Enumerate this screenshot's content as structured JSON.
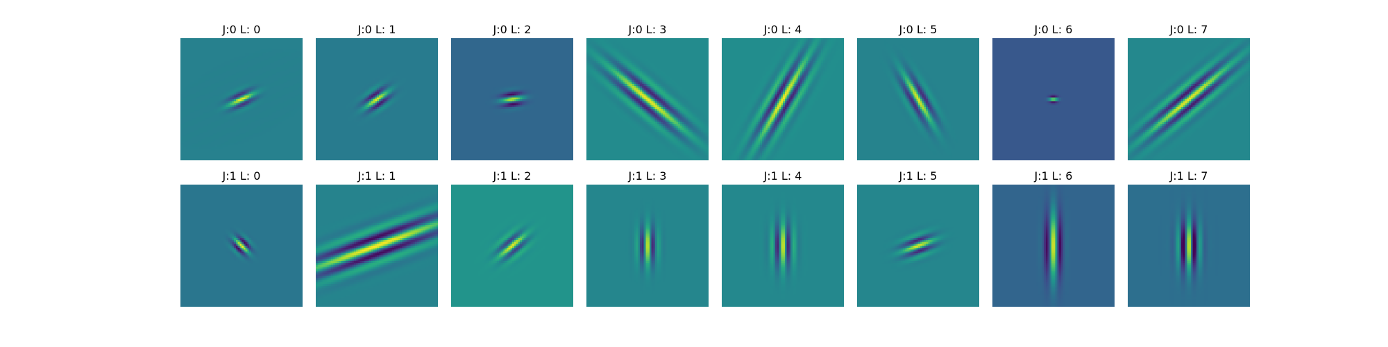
{
  "colors": {
    "low": "#440154",
    "mid": "#21918c",
    "high": "#fde725"
  },
  "chart_data": {
    "type": "heatmap",
    "title": "",
    "colormap": "viridis",
    "rows": 2,
    "cols": 8,
    "panels": [
      {
        "title": "J:0 L: 0",
        "J": 0,
        "L": 0,
        "bg": 0.44,
        "angle_deg": -25,
        "sigma_major": 5,
        "sigma_minor": 2.5,
        "wavelength": 6,
        "amp": 0.55
      },
      {
        "title": "J:0 L: 1",
        "J": 0,
        "L": 1,
        "bg": 0.42,
        "angle_deg": -35,
        "sigma_major": 5,
        "sigma_minor": 3,
        "wavelength": 6,
        "amp": 0.55
      },
      {
        "title": "J:0 L: 2",
        "J": 0,
        "L": 2,
        "bg": 0.34,
        "angle_deg": -8,
        "sigma_major": 4,
        "sigma_minor": 2.5,
        "wavelength": 6,
        "amp": 0.6
      },
      {
        "title": "J:0 L: 3",
        "J": 0,
        "L": 3,
        "bg": 0.48,
        "angle_deg": 40,
        "sigma_major": 17,
        "sigma_minor": 5,
        "wavelength": 8,
        "amp": 0.5
      },
      {
        "title": "J:0 L: 4",
        "J": 0,
        "L": 4,
        "bg": 0.49,
        "angle_deg": -60,
        "sigma_major": 17,
        "sigma_minor": 5,
        "wavelength": 7,
        "amp": 0.5
      },
      {
        "title": "J:0 L: 5",
        "J": 0,
        "L": 5,
        "bg": 0.45,
        "angle_deg": 60,
        "sigma_major": 10,
        "sigma_minor": 3.5,
        "wavelength": 7,
        "amp": 0.5
      },
      {
        "title": "J:0 L: 6",
        "J": 0,
        "L": 6,
        "bg": 0.28,
        "angle_deg": 0,
        "sigma_major": 1.6,
        "sigma_minor": 1.2,
        "wavelength": 4,
        "amp": 0.7
      },
      {
        "title": "J:0 L: 7",
        "J": 0,
        "L": 7,
        "bg": 0.47,
        "angle_deg": -40,
        "sigma_major": 19,
        "sigma_minor": 5,
        "wavelength": 7,
        "amp": 0.5
      },
      {
        "title": "J:1 L: 0",
        "J": 1,
        "L": 0,
        "bg": 0.4,
        "angle_deg": 45,
        "sigma_major": 3.5,
        "sigma_minor": 2.5,
        "wavelength": 5,
        "amp": 0.6
      },
      {
        "title": "J:1 L: 1",
        "J": 1,
        "L": 1,
        "bg": 0.45,
        "angle_deg": -20,
        "sigma_major": 28,
        "sigma_minor": 6,
        "wavelength": 9,
        "amp": 0.55
      },
      {
        "title": "J:1 L: 2",
        "J": 1,
        "L": 2,
        "bg": 0.52,
        "angle_deg": -40,
        "sigma_major": 6,
        "sigma_minor": 3.5,
        "wavelength": 6,
        "amp": 0.45
      },
      {
        "title": "J:1 L: 3",
        "J": 1,
        "L": 3,
        "bg": 0.46,
        "angle_deg": 90,
        "sigma_major": 7,
        "sigma_minor": 3.5,
        "wavelength": 6,
        "amp": 0.5
      },
      {
        "title": "J:1 L: 4",
        "J": 1,
        "L": 4,
        "bg": 0.47,
        "angle_deg": 90,
        "sigma_major": 8,
        "sigma_minor": 4,
        "wavelength": 6,
        "amp": 0.5
      },
      {
        "title": "J:1 L: 5",
        "J": 1,
        "L": 5,
        "bg": 0.46,
        "angle_deg": -20,
        "sigma_major": 6,
        "sigma_minor": 3.5,
        "wavelength": 6,
        "amp": 0.5
      },
      {
        "title": "J:1 L: 6",
        "J": 1,
        "L": 6,
        "bg": 0.33,
        "angle_deg": 90,
        "sigma_major": 12,
        "sigma_minor": 3,
        "wavelength": 8,
        "amp": 0.65
      },
      {
        "title": "J:1 L: 7",
        "J": 1,
        "L": 7,
        "bg": 0.37,
        "angle_deg": 90,
        "sigma_major": 9,
        "sigma_minor": 4,
        "wavelength": 6,
        "amp": 0.6
      }
    ]
  }
}
